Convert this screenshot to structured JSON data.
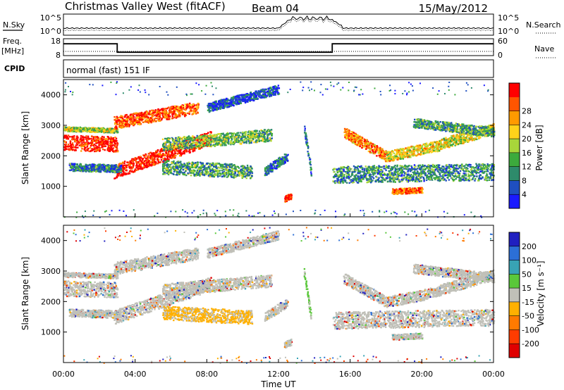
{
  "header": {
    "station": "Christmas Valley West (fitACF)",
    "beam": "Beam 04",
    "date": "15/May/2012"
  },
  "labels": {
    "nsky": "N.Sky",
    "nsearch": "N.Search",
    "freq": "Freq.",
    "freq_unit": "[MHz]",
    "nave": "Nave",
    "cpid": "CPID",
    "cpid_value": "normal (fast) 151 IF"
  },
  "colors": {
    "power_scale": [
      "#1a1aff",
      "#1f4fc0",
      "#2e8b6b",
      "#3caa3c",
      "#a8d63a",
      "#ffd21a",
      "#ff9a00",
      "#ff5500",
      "#ff0000"
    ],
    "velocity_scale": [
      "#2020c0",
      "#2c6fd6",
      "#38a3b5",
      "#5ac83a",
      "#c0c0b8",
      "#ffb000",
      "#ff7a00",
      "#ff3c00",
      "#e00000"
    ]
  },
  "chart_data": [
    {
      "type": "line",
      "panel": "noise",
      "left_axis": {
        "label": "N.Sky",
        "ticks": [
          "10^5",
          "10^0"
        ]
      },
      "right_axis": {
        "label": "N.Search",
        "ticks": [
          "10^5",
          "10^0"
        ]
      }
    },
    {
      "type": "line",
      "panel": "frequency",
      "left_axis": {
        "label": "Freq. [MHz]",
        "ticks": [
          18,
          8
        ],
        "range": [
          8,
          18
        ]
      },
      "right_axis": {
        "label": "Nave",
        "ticks": [
          60,
          0
        ],
        "range": [
          0,
          60
        ]
      },
      "freq_steps": [
        {
          "from": "00:00",
          "to": "03:00",
          "mhz": 15
        },
        {
          "from": "03:00",
          "to": "15:00",
          "mhz": 10
        },
        {
          "from": "15:00",
          "to": "24:00",
          "mhz": 15
        }
      ]
    },
    {
      "type": "heatmap",
      "panel": "power",
      "ylabel": "Slant Range [km]",
      "yticks": [
        1000,
        2000,
        3000,
        4000
      ],
      "ylim": [
        0,
        4500
      ],
      "colorbar": {
        "label": "Power [dB]",
        "ticks": [
          4,
          8,
          12,
          16,
          20,
          24,
          28
        ]
      }
    },
    {
      "type": "heatmap",
      "panel": "velocity",
      "ylabel": "Slant Range [km]",
      "yticks": [
        1000,
        2000,
        3000,
        4000
      ],
      "ylim": [
        0,
        4500
      ],
      "xlabel": "Time UT",
      "xticks": [
        "00:00",
        "04:00",
        "08:00",
        "12:00",
        "16:00",
        "20:00",
        "00:00"
      ],
      "colorbar": {
        "label": "Velocity [m s⁻¹]",
        "ticks": [
          200,
          100,
          50,
          15,
          -15,
          -50,
          -100,
          -200
        ]
      }
    }
  ]
}
